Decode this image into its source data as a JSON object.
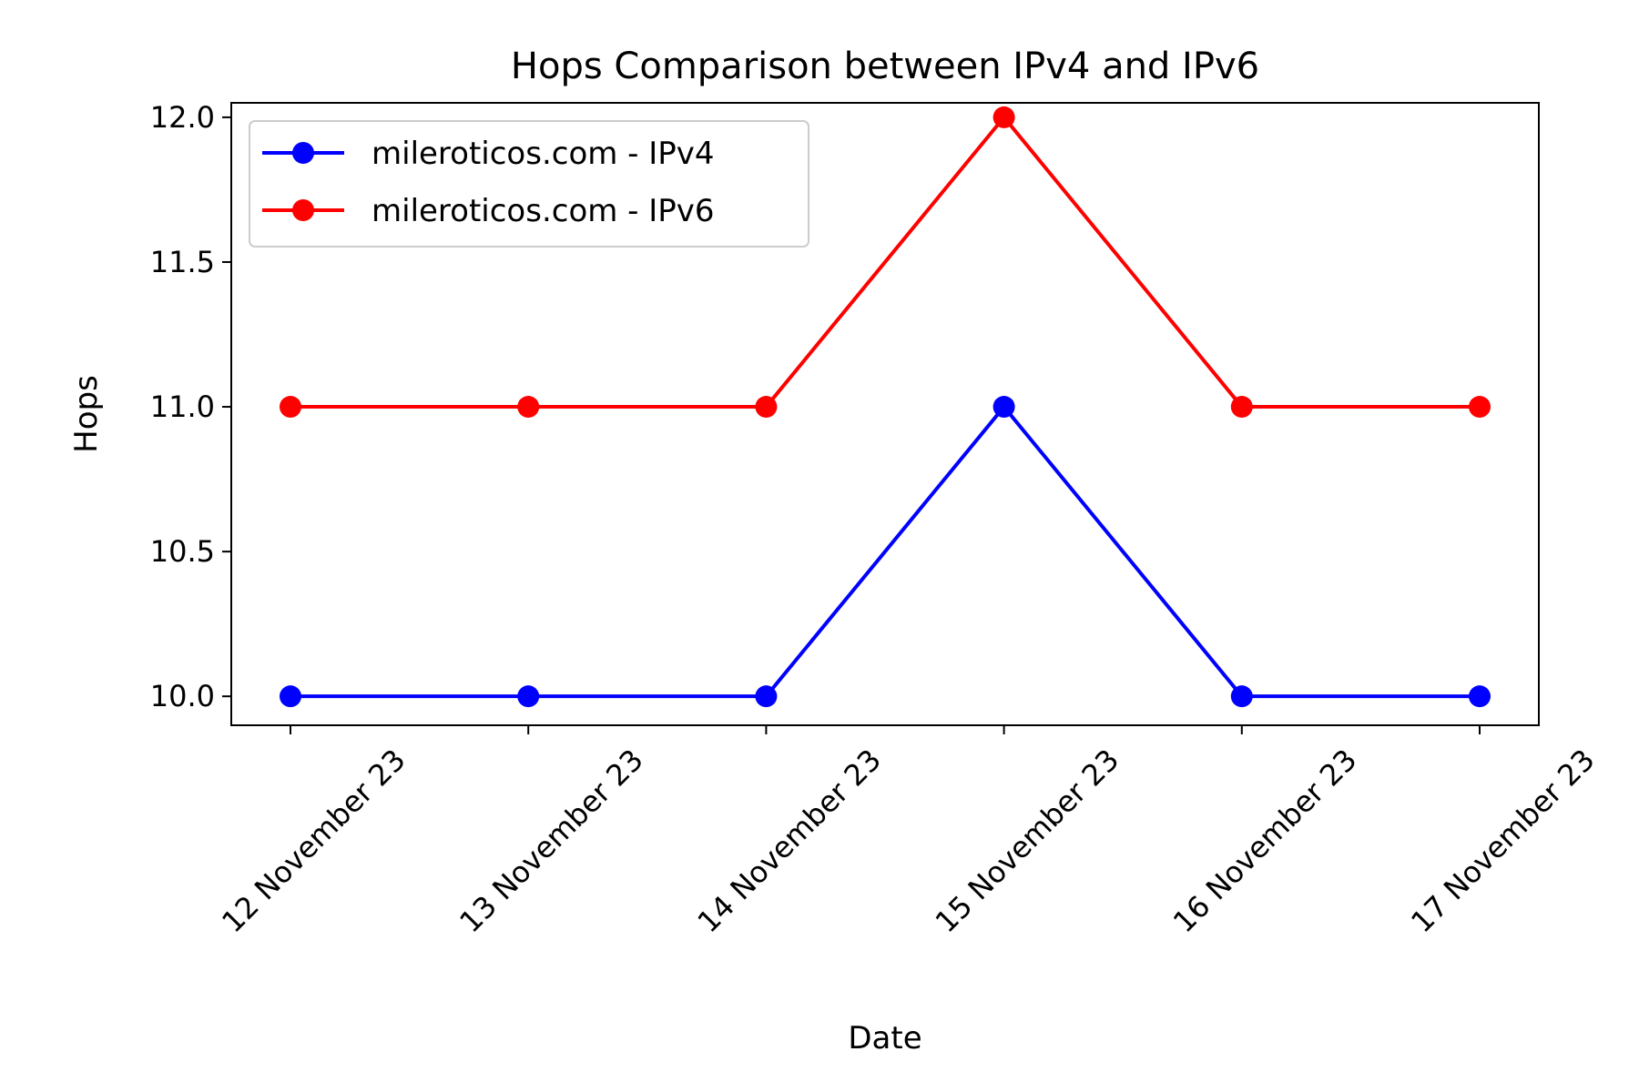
{
  "chart_data": {
    "type": "line",
    "title": "Hops Comparison between IPv4 and IPv6",
    "xlabel": "Date",
    "ylabel": "Hops",
    "categories": [
      "12 November 23",
      "13 November 23",
      "14 November 23",
      "15 November 23",
      "16 November 23",
      "17 November 23"
    ],
    "yticks": [
      "10.0",
      "10.5",
      "11.0",
      "11.5",
      "12.0"
    ],
    "ylim": [
      9.9,
      12.05
    ],
    "grid": false,
    "legend_position": "upper-left",
    "series": [
      {
        "name": "mileroticos.com - IPv4",
        "color": "#0000ff",
        "values": [
          10,
          10,
          10,
          11,
          10,
          10
        ]
      },
      {
        "name": "mileroticos.com - IPv6",
        "color": "#ff0000",
        "values": [
          11,
          11,
          11,
          12,
          11,
          11
        ]
      }
    ]
  }
}
